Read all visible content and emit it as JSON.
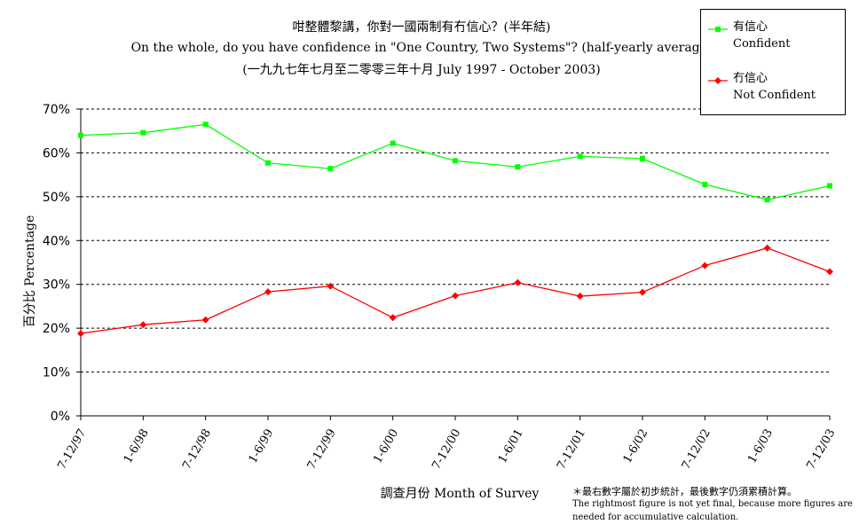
{
  "chart_data": {
    "type": "line",
    "title_lines": [
      "咁整體黎講，你對一國兩制有冇信心？(半年結)",
      "On the whole, do you have confidence in \"One Country, Two Systems\"? (half-yearly average)",
      "(一九九七年七月至二零零三年十月 July 1997 - October 2003)"
    ],
    "xlabel": "調查月份 Month of Survey",
    "ylabel": "百分比 Percentage",
    "ylim": [
      0,
      70
    ],
    "yticks": [
      "0%",
      "10%",
      "20%",
      "30%",
      "40%",
      "50%",
      "60%",
      "70%"
    ],
    "grid": true,
    "legend_position": "top-right",
    "categories": [
      "7-12/97",
      "1-6/98",
      "7-12/98",
      "1-6/99",
      "7-12/99",
      "1-6/00",
      "7-12/00",
      "1-6/01",
      "7-12/01",
      "1-6/02",
      "7-12/02",
      "1-6/03",
      "7-12/03"
    ],
    "series": [
      {
        "name_zh": "有信心",
        "name_en": "Confident",
        "color": "#00ff00",
        "marker": "square",
        "values": [
          64.0,
          64.6,
          66.5,
          57.7,
          56.4,
          62.2,
          58.2,
          56.8,
          59.2,
          58.7,
          52.8,
          49.3,
          52.5
        ]
      },
      {
        "name_zh": "冇信心",
        "name_en": "Not Confident",
        "color": "#ff0000",
        "marker": "diamond",
        "values": [
          18.8,
          20.8,
          21.9,
          28.3,
          29.6,
          22.4,
          27.4,
          30.4,
          27.3,
          28.2,
          34.3,
          38.3,
          32.9
        ]
      }
    ],
    "notes": [
      "＊最右數字屬於初步統計，最後數字仍須累積計算。",
      "The rightmost figure is not yet final, because more figures are",
      "needed for accumulative calculation."
    ]
  }
}
